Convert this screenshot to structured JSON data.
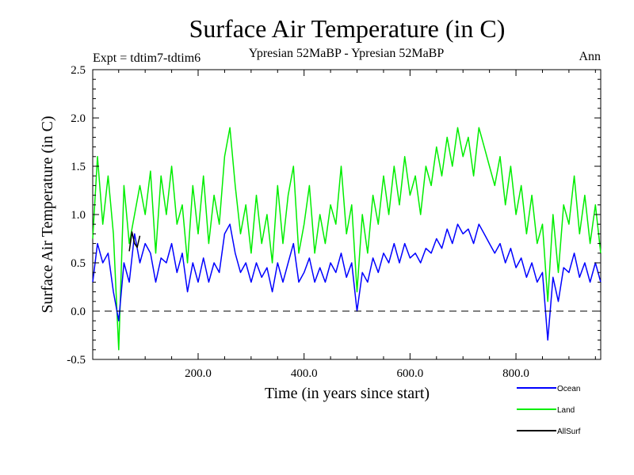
{
  "chart_data": {
    "type": "line",
    "title": "Surface Air Temperature (in C)",
    "subtitle_left": "Expt = tdtim7-tdtim6",
    "subtitle_center": "Ypresian  52MaBP - Ypresian  52MaBP",
    "subtitle_right": "Ann",
    "xlabel": "Time (in years since start)",
    "ylabel": "Surface Air Temperature (in C)",
    "xlim": [
      1,
      960
    ],
    "ylim": [
      -0.5,
      2.5
    ],
    "x_ticks": [
      200,
      400,
      600,
      800
    ],
    "x_tick_labels": [
      "200.0",
      "400.0",
      "600.0",
      "800.0"
    ],
    "y_ticks": [
      -0.5,
      0.0,
      0.5,
      1.0,
      1.5,
      2.0,
      2.5
    ],
    "y_tick_labels": [
      "-0.5",
      "0.0",
      "0.5",
      "1.0",
      "1.5",
      "2.0",
      "2.5"
    ],
    "reference_line": 0.0,
    "legend_position": "bottom-right",
    "series": [
      {
        "name": "Land",
        "color": "#00ee00",
        "note": "annual means for years 1-960, approximated at 10-year resolution",
        "x": [
          1,
          10,
          20,
          30,
          40,
          50,
          60,
          70,
          80,
          90,
          100,
          110,
          120,
          130,
          140,
          150,
          160,
          170,
          180,
          190,
          200,
          210,
          220,
          230,
          240,
          250,
          260,
          270,
          280,
          290,
          300,
          310,
          320,
          330,
          340,
          350,
          360,
          370,
          380,
          390,
          400,
          410,
          420,
          430,
          440,
          450,
          460,
          470,
          480,
          490,
          500,
          510,
          520,
          530,
          540,
          550,
          560,
          570,
          580,
          590,
          600,
          610,
          620,
          630,
          640,
          650,
          660,
          670,
          680,
          690,
          700,
          710,
          720,
          730,
          740,
          750,
          760,
          770,
          780,
          790,
          800,
          810,
          820,
          830,
          840,
          850,
          860,
          870,
          880,
          890,
          900,
          910,
          920,
          930,
          940,
          950,
          960
        ],
        "values": [
          0.75,
          1.6,
          0.9,
          1.4,
          0.8,
          -0.4,
          1.3,
          0.7,
          1.0,
          1.3,
          1.0,
          1.45,
          0.6,
          1.4,
          1.0,
          1.5,
          0.9,
          1.1,
          0.5,
          1.3,
          0.8,
          1.4,
          0.7,
          1.2,
          0.9,
          1.6,
          1.9,
          1.3,
          0.8,
          1.1,
          0.6,
          1.2,
          0.7,
          1.0,
          0.5,
          1.3,
          0.7,
          1.2,
          1.5,
          0.6,
          0.9,
          1.3,
          0.6,
          1.0,
          0.7,
          1.1,
          0.9,
          1.5,
          0.8,
          1.1,
          0.2,
          1.0,
          0.6,
          1.2,
          0.9,
          1.4,
          1.0,
          1.5,
          1.1,
          1.6,
          1.2,
          1.4,
          1.0,
          1.5,
          1.3,
          1.7,
          1.4,
          1.8,
          1.5,
          1.9,
          1.6,
          1.8,
          1.4,
          1.9,
          1.7,
          1.5,
          1.3,
          1.6,
          1.1,
          1.5,
          1.0,
          1.3,
          0.8,
          1.2,
          0.7,
          0.9,
          0.1,
          1.0,
          0.4,
          1.1,
          0.9,
          1.4,
          0.8,
          1.2,
          0.7,
          1.1,
          0.6
        ]
      },
      {
        "name": "Ocean",
        "color": "#0000ff",
        "note": "annual means for years 1-960, approximated at 10-year resolution",
        "x": [
          1,
          10,
          20,
          30,
          40,
          50,
          60,
          70,
          80,
          90,
          100,
          110,
          120,
          130,
          140,
          150,
          160,
          170,
          180,
          190,
          200,
          210,
          220,
          230,
          240,
          250,
          260,
          270,
          280,
          290,
          300,
          310,
          320,
          330,
          340,
          350,
          360,
          370,
          380,
          390,
          400,
          410,
          420,
          430,
          440,
          450,
          460,
          470,
          480,
          490,
          500,
          510,
          520,
          530,
          540,
          550,
          560,
          570,
          580,
          590,
          600,
          610,
          620,
          630,
          640,
          650,
          660,
          670,
          680,
          690,
          700,
          710,
          720,
          730,
          740,
          750,
          760,
          770,
          780,
          790,
          800,
          810,
          820,
          830,
          840,
          850,
          860,
          870,
          880,
          890,
          900,
          910,
          920,
          930,
          940,
          950,
          960
        ],
        "values": [
          0.3,
          0.7,
          0.5,
          0.6,
          0.2,
          -0.1,
          0.5,
          0.3,
          0.8,
          0.5,
          0.7,
          0.6,
          0.3,
          0.55,
          0.5,
          0.7,
          0.4,
          0.6,
          0.2,
          0.5,
          0.3,
          0.55,
          0.3,
          0.5,
          0.4,
          0.8,
          0.9,
          0.6,
          0.4,
          0.5,
          0.3,
          0.5,
          0.35,
          0.45,
          0.2,
          0.5,
          0.3,
          0.5,
          0.7,
          0.3,
          0.4,
          0.55,
          0.3,
          0.45,
          0.3,
          0.5,
          0.4,
          0.6,
          0.35,
          0.5,
          0.0,
          0.4,
          0.3,
          0.55,
          0.4,
          0.6,
          0.5,
          0.7,
          0.5,
          0.7,
          0.55,
          0.6,
          0.5,
          0.65,
          0.6,
          0.75,
          0.65,
          0.85,
          0.7,
          0.9,
          0.8,
          0.85,
          0.7,
          0.9,
          0.8,
          0.7,
          0.6,
          0.7,
          0.5,
          0.65,
          0.45,
          0.55,
          0.35,
          0.5,
          0.3,
          0.4,
          -0.3,
          0.35,
          0.1,
          0.45,
          0.4,
          0.6,
          0.35,
          0.5,
          0.3,
          0.5,
          0.3
        ]
      },
      {
        "name": "AllSurf",
        "color": "#000000",
        "note": "mostly hidden beneath the Ocean and Land traces; one black fragment visible near year 80",
        "x": [
          70,
          75,
          80,
          85,
          90
        ],
        "values": [
          0.62,
          0.82,
          0.7,
          0.66,
          0.78
        ]
      }
    ],
    "legend_order": [
      "Ocean",
      "Land",
      "AllSurf"
    ]
  }
}
